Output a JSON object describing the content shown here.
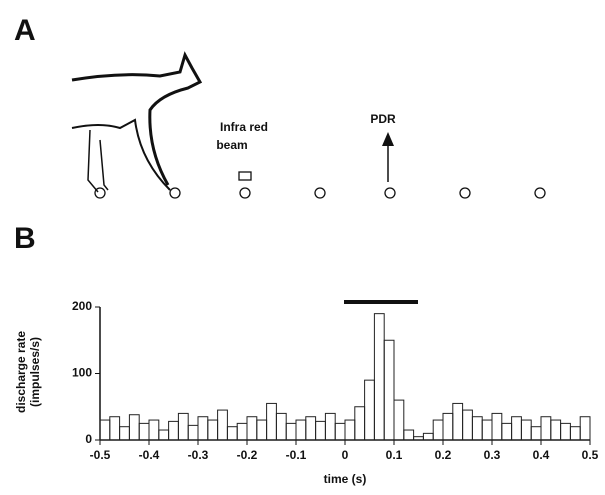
{
  "panel_a": {
    "label": "A",
    "beam_label": [
      "Infra red",
      "beam"
    ],
    "arrow_label": "PDR"
  },
  "panel_b": {
    "label": "B"
  },
  "chart_data": {
    "type": "histogram",
    "y_label": [
      "discharge rate",
      "(impulses/s)"
    ],
    "x_label": "time (s)",
    "bins": [
      -0.5,
      -0.48,
      -0.46,
      -0.44,
      -0.42,
      -0.4,
      -0.38,
      -0.36,
      -0.34,
      -0.32,
      -0.3,
      -0.28,
      -0.26,
      -0.24,
      -0.22,
      -0.2,
      -0.18,
      -0.16,
      -0.14,
      -0.12,
      -0.1,
      -0.08,
      -0.06,
      -0.04,
      -0.02,
      0,
      0.02,
      0.04,
      0.06,
      0.08,
      0.1,
      0.12,
      0.14,
      0.16,
      0.18,
      0.2,
      0.22,
      0.24,
      0.26,
      0.28,
      0.3,
      0.32,
      0.34,
      0.36,
      0.38,
      0.4,
      0.42,
      0.44,
      0.46,
      0.48,
      0.5
    ],
    "values": [
      30,
      35,
      20,
      38,
      25,
      30,
      15,
      28,
      40,
      22,
      35,
      30,
      45,
      20,
      25,
      35,
      30,
      55,
      40,
      25,
      30,
      35,
      28,
      40,
      25,
      30,
      50,
      90,
      190,
      150,
      60,
      15,
      5,
      10,
      30,
      40,
      55,
      45,
      35,
      30,
      40,
      25,
      35,
      30,
      20,
      35,
      30,
      25,
      20,
      35
    ],
    "color": "#222222",
    "xlim": [
      -0.5,
      0.5
    ],
    "xticks": [
      -0.5,
      -0.4,
      -0.3,
      -0.2,
      -0.1,
      0,
      0.1,
      0.2,
      0.3,
      0.4,
      0.5
    ],
    "ylim": [
      0,
      200
    ],
    "yticks": [
      0,
      100,
      200
    ]
  }
}
